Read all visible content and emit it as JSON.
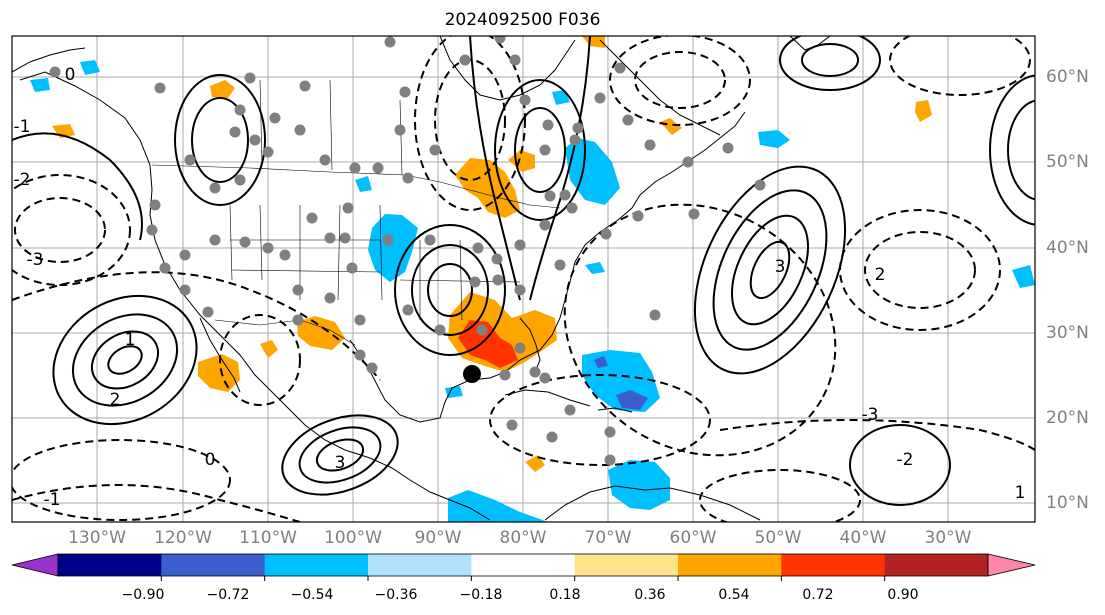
{
  "title": "2024092500 F036",
  "lon_labels": [
    "130°W",
    "120°W",
    "110°W",
    "100°W",
    "90°W",
    "80°W",
    "70°W",
    "60°W",
    "50°W",
    "40°W",
    "30°W"
  ],
  "lat_labels": [
    "60°N",
    "50°N",
    "40°N",
    "30°N",
    "20°N",
    "10°N"
  ],
  "colorbar": {
    "ticks": [
      "−0.90",
      "−0.72",
      "−0.54",
      "−0.36",
      "−0.18",
      "0.18",
      "0.36",
      "0.54",
      "0.72",
      "0.90"
    ],
    "colors": [
      "#9933cc",
      "#00008b",
      "#3a5fcd",
      "#00bfff",
      "#b0e2ff",
      "#ffffff",
      "#ffe38a",
      "#ffa500",
      "#ff3300",
      "#b22222",
      "#ff88aa"
    ]
  },
  "contour_labels": [
    "0",
    "-1",
    "-2",
    "-3",
    "1",
    "2",
    "3",
    "0",
    "-1",
    "-2",
    "-3",
    "1",
    "2",
    "3"
  ],
  "map_colors": {
    "positive_fill": "#ffa500",
    "strong_positive_fill": "#ff3300",
    "negative_fill": "#00bfff",
    "strong_negative_fill": "#3a5fcd",
    "station_dot": "#808080",
    "center_marker": "#000000"
  }
}
